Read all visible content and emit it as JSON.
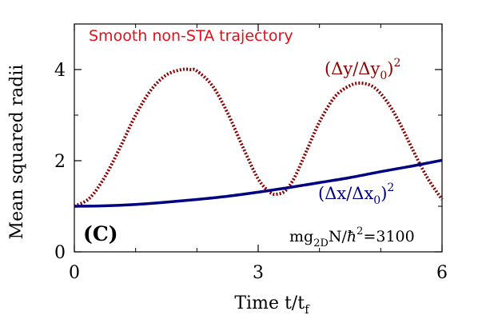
{
  "chart_data": {
    "type": "line",
    "title": "",
    "xlabel": {
      "main": "Time t/t",
      "sub": "f"
    },
    "ylabel": "Mean squared radii",
    "xlim": [
      0,
      6
    ],
    "ylim": [
      0,
      5
    ],
    "xticks": [
      0,
      3,
      6
    ],
    "xticks_minor": [
      1,
      2,
      4,
      5
    ],
    "yticks": [
      0,
      2,
      4
    ],
    "yticks_minor": [
      1,
      3,
      5
    ],
    "grid": false,
    "annotations": {
      "trajectory": "Smooth non-STA trajectory",
      "panel": "(C)",
      "param": {
        "a": "mg",
        "a_sub": "2D",
        "b": "N/",
        "hbar": "ħ",
        "b_sup": "2",
        "c": "=3100"
      }
    },
    "series": [
      {
        "name": "(Δy/Δy0)^2",
        "label_parts": {
          "a": "(Δy/Δy",
          "sub": "0",
          "b": ")",
          "sup": "2"
        },
        "color": "#8b0000",
        "style": "dotted",
        "x": [
          0,
          0.25,
          0.5,
          0.75,
          1.0,
          1.25,
          1.5,
          1.75,
          1.9,
          2.0,
          2.25,
          2.5,
          2.75,
          3.0,
          3.2,
          3.32,
          3.45,
          3.6,
          3.8,
          4.0,
          4.25,
          4.5,
          4.7,
          4.9,
          5.1,
          5.3,
          5.5,
          5.75,
          6.0
        ],
        "y": [
          1.0,
          1.18,
          1.65,
          2.3,
          3.0,
          3.55,
          3.88,
          4.0,
          4.0,
          3.97,
          3.65,
          3.05,
          2.3,
          1.6,
          1.3,
          1.27,
          1.35,
          1.65,
          2.25,
          2.85,
          3.4,
          3.65,
          3.7,
          3.6,
          3.3,
          2.85,
          2.3,
          1.65,
          1.15
        ]
      },
      {
        "name": "(Δx/Δx0)^2",
        "label_parts": {
          "a": "(Δx/Δx",
          "sub": "0",
          "b": ")",
          "sup": "2"
        },
        "color": "#000080",
        "style": "solid",
        "x": [
          0,
          0.5,
          1.0,
          1.5,
          2.0,
          2.5,
          3.0,
          3.5,
          4.0,
          4.5,
          5.0,
          5.5,
          6.0
        ],
        "y": [
          1.0,
          1.01,
          1.04,
          1.09,
          1.15,
          1.22,
          1.31,
          1.41,
          1.52,
          1.63,
          1.76,
          1.88,
          2.01
        ]
      }
    ]
  }
}
